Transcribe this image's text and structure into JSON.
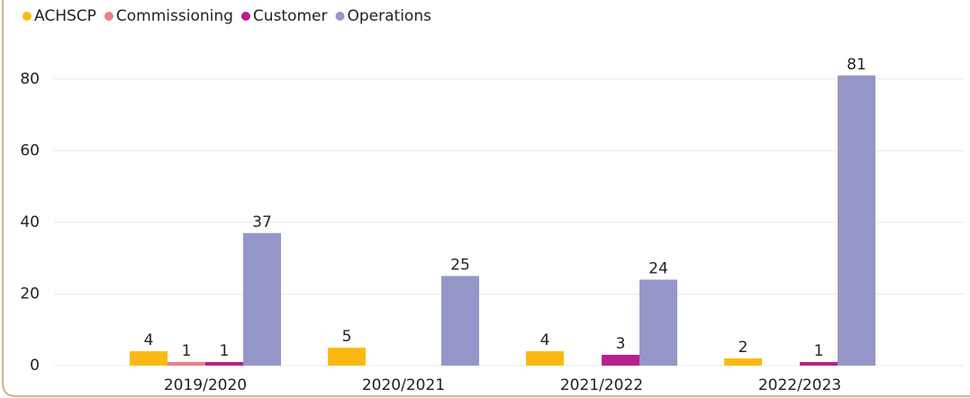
{
  "chart_data": {
    "type": "bar",
    "categories": [
      "2019/2020",
      "2020/2021",
      "2021/2022",
      "2022/2023"
    ],
    "series": [
      {
        "name": "ACHSCP",
        "color": "#fdb913",
        "values": [
          4,
          5,
          4,
          2
        ]
      },
      {
        "name": "Commissioning",
        "color": "#ef7f86",
        "values": [
          1,
          null,
          null,
          null
        ]
      },
      {
        "name": "Customer",
        "color": "#b5218e",
        "values": [
          1,
          null,
          3,
          1
        ]
      },
      {
        "name": "Operations",
        "color": "#9497c8",
        "values": [
          37,
          25,
          24,
          81
        ]
      }
    ],
    "ylim": [
      0,
      90
    ],
    "yticks": [
      0,
      20,
      40,
      60,
      80
    ],
    "grid": true,
    "legend": "top-left"
  }
}
